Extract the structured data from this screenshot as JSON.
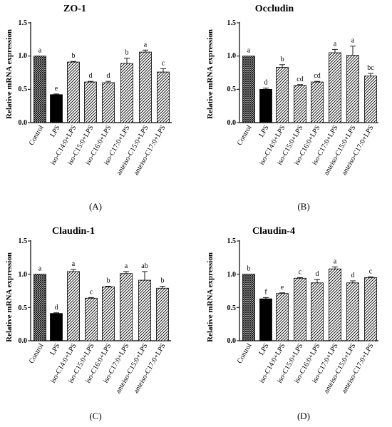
{
  "figure": {
    "categories": [
      "Control",
      "LPS",
      "iso-C14:0+LPS",
      "iso-C15:0+LPS",
      "iso-C16:0+LPS",
      "iso-C17:0+LPS",
      "anteiso-C15:0+LPS",
      "anteiso-C17:0+LPS"
    ],
    "ylabel": "Relative mRNA expression",
    "bar_styles": [
      "crosshatch",
      "solid-black",
      "diagonal-hatch",
      "diagonal-hatch",
      "diagonal-hatch",
      "diagonal-hatch",
      "diagonal-hatch",
      "diagonal-hatch"
    ],
    "colors": {
      "bar_fill": "#000000",
      "background": "#ffffff"
    }
  },
  "chart_data": [
    {
      "type": "bar",
      "panel_label": "(A)",
      "title": "ZO-1",
      "ylabel": "Relative mRNA expression",
      "ylim": [
        0,
        1.5
      ],
      "yticks": [
        "0.0",
        "0.5",
        "1.0",
        "1.5"
      ],
      "categories": [
        "Control",
        "LPS",
        "iso-C14:0+LPS",
        "iso-C15:0+LPS",
        "iso-C16:0+LPS",
        "iso-C17:0+LPS",
        "anteiso-C15:0+LPS",
        "anteiso-C17:0+LPS"
      ],
      "values": [
        1.0,
        0.42,
        0.91,
        0.61,
        0.6,
        0.89,
        1.06,
        0.76
      ],
      "errors": [
        0.0,
        0.01,
        0.01,
        0.01,
        0.02,
        0.08,
        0.03,
        0.05
      ],
      "letters": [
        "a",
        "e",
        "b",
        "d",
        "d",
        "b",
        "a",
        "c"
      ]
    },
    {
      "type": "bar",
      "panel_label": "(B)",
      "title": "Occludin",
      "ylabel": "Relative mRNA expression",
      "ylim": [
        0,
        1.5
      ],
      "yticks": [
        "0.0",
        "0.5",
        "1.0",
        "1.5"
      ],
      "categories": [
        "Control",
        "LPS",
        "iso-C14:0+LPS",
        "iso-C15:0+LPS",
        "iso-C16:0+LPS",
        "iso-C17:0+LPS",
        "anteiso-C15:0+LPS",
        "anteiso-C17:0+LPS"
      ],
      "values": [
        1.0,
        0.5,
        0.83,
        0.56,
        0.61,
        1.05,
        1.01,
        0.7
      ],
      "errors": [
        0.0,
        0.02,
        0.04,
        0.01,
        0.01,
        0.05,
        0.14,
        0.04
      ],
      "letters": [
        "a",
        "d",
        "b",
        "cd",
        "cd",
        "a",
        "a",
        "bc"
      ]
    },
    {
      "type": "bar",
      "panel_label": "(C)",
      "title": "Claudin-1",
      "ylabel": "Relative mRNA expression",
      "ylim": [
        0,
        1.5
      ],
      "yticks": [
        "0.0",
        "0.5",
        "1.0",
        "1.5"
      ],
      "categories": [
        "Control",
        "LPS",
        "iso-C14:0+LPS",
        "iso-C15:0+LPS",
        "iso-C16:0+LPS",
        "iso-C17:0+LPS",
        "anteiso-C15:0+LPS",
        "anteiso-C17:0+LPS"
      ],
      "values": [
        1.0,
        0.41,
        1.04,
        0.64,
        0.81,
        1.01,
        0.91,
        0.79
      ],
      "errors": [
        0.0,
        0.01,
        0.03,
        0.01,
        0.01,
        0.03,
        0.13,
        0.03
      ],
      "letters": [
        "a",
        "d",
        "a",
        "c",
        "b",
        "a",
        "ab",
        "b"
      ]
    },
    {
      "type": "bar",
      "panel_label": "(D)",
      "title": "Claudin-4",
      "ylabel": "Relative mRNA expression",
      "ylim": [
        0,
        1.5
      ],
      "yticks": [
        "0.0",
        "0.5",
        "1.0",
        "1.5"
      ],
      "categories": [
        "Control",
        "LPS",
        "iso-C14:0+LPS",
        "iso-C15:0+LPS",
        "iso-C16:0+LPS",
        "iso-C17:0+LPS",
        "anteiso-C15:0+LPS",
        "anteiso-C17:0+LPS"
      ],
      "values": [
        1.0,
        0.63,
        0.71,
        0.94,
        0.87,
        1.08,
        0.87,
        0.95
      ],
      "errors": [
        0.0,
        0.02,
        0.01,
        0.01,
        0.05,
        0.03,
        0.03,
        0.01
      ],
      "letters": [
        "b",
        "f",
        "e",
        "c",
        "d",
        "a",
        "d",
        "c"
      ]
    }
  ]
}
